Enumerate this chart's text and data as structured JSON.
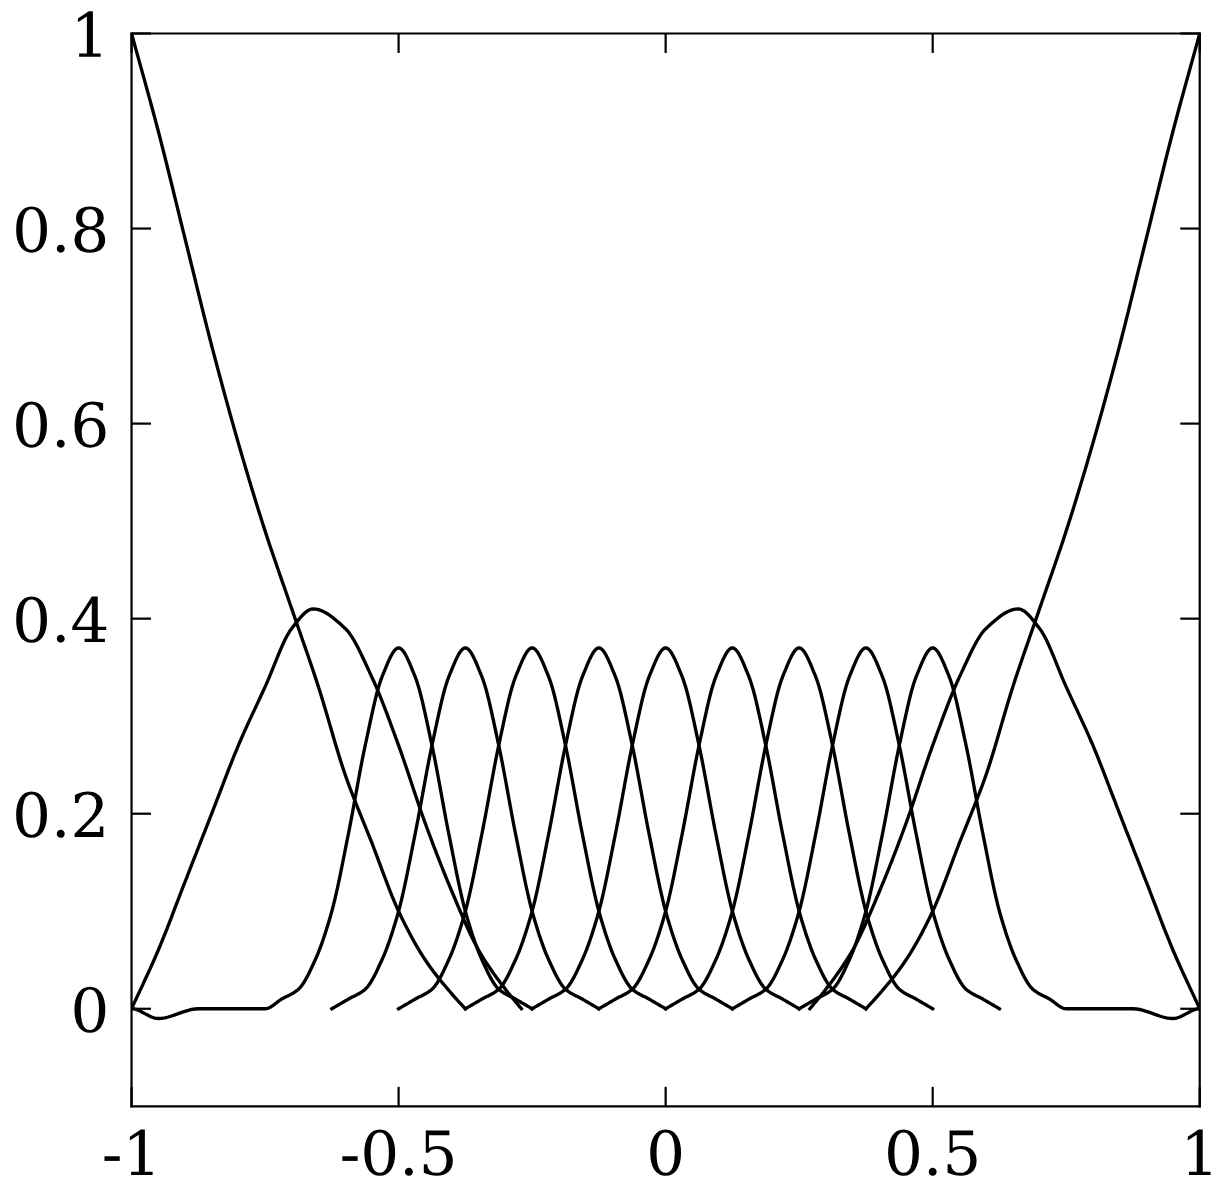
{
  "chart_data": {
    "type": "line",
    "xlim": [
      -1,
      1
    ],
    "ylim": [
      -0.1,
      1
    ],
    "xticks": [
      {
        "value": -1,
        "label": "-1"
      },
      {
        "value": -0.5,
        "label": "-0.5"
      },
      0,
      0.5,
      1
    ],
    "yticks": [
      0,
      0.2,
      0.4,
      0.6,
      0.8,
      1
    ],
    "grid": false,
    "legend": false,
    "marker": "none",
    "line_style": "solid",
    "series": [
      {
        "color": "#000000",
        "x": [
          -1,
          -0.95,
          -0.9,
          -0.85,
          -0.8,
          -0.75,
          -0.7,
          -0.65,
          -0.6,
          -0.55,
          -0.5,
          -0.45,
          -0.4,
          -0.375
        ],
        "values": [
          1,
          0.9,
          0.79,
          0.68,
          0.58,
          0.49,
          0.41,
          0.33,
          0.24,
          0.17,
          0.1,
          0.05,
          0.015,
          0
        ]
      },
      {
        "color": "#000000",
        "x": [
          -1,
          -0.95,
          -0.9,
          -0.85,
          -0.8,
          -0.75,
          -0.7,
          -0.66,
          -0.6,
          -0.55,
          -0.5,
          -0.45,
          -0.4,
          -0.35,
          -0.3,
          -0.27
        ],
        "values": [
          0,
          0.06,
          0.13,
          0.2,
          0.27,
          0.33,
          0.39,
          0.41,
          0.39,
          0.34,
          0.27,
          0.19,
          0.12,
          0.06,
          0.02,
          0
        ]
      },
      {
        "color": "#000000",
        "x": [
          -1,
          -0.95,
          -0.875,
          -0.75,
          -0.71875,
          -0.6875,
          -0.65625,
          -0.625,
          -0.59375,
          -0.5625,
          -0.53125,
          -0.5,
          -0.46875,
          -0.4375,
          -0.40625,
          -0.375,
          -0.34375,
          -0.3125,
          -0.28125,
          -0.25
        ],
        "values": [
          0,
          -0.01,
          0,
          0,
          0.01,
          0.02,
          0.05,
          0.1,
          0.18,
          0.27,
          0.34,
          0.37,
          0.34,
          0.27,
          0.18,
          0.1,
          0.05,
          0.02,
          0.01,
          0
        ]
      },
      {
        "color": "#000000",
        "x": [
          -0.625,
          -0.59375,
          -0.5625,
          -0.53125,
          -0.5,
          -0.46875,
          -0.4375,
          -0.40625,
          -0.375,
          -0.34375,
          -0.3125,
          -0.28125,
          -0.25,
          -0.21875,
          -0.1875,
          -0.15625,
          -0.125
        ],
        "values": [
          0,
          0.01,
          0.02,
          0.05,
          0.1,
          0.18,
          0.27,
          0.34,
          0.37,
          0.34,
          0.27,
          0.18,
          0.1,
          0.05,
          0.02,
          0.01,
          0
        ]
      },
      {
        "color": "#000000",
        "x": [
          -0.5,
          -0.46875,
          -0.4375,
          -0.40625,
          -0.375,
          -0.34375,
          -0.3125,
          -0.28125,
          -0.25,
          -0.21875,
          -0.1875,
          -0.15625,
          -0.125,
          -0.09375,
          -0.0625,
          -0.03125,
          0
        ],
        "values": [
          0,
          0.01,
          0.02,
          0.05,
          0.1,
          0.18,
          0.27,
          0.34,
          0.37,
          0.34,
          0.27,
          0.18,
          0.1,
          0.05,
          0.02,
          0.01,
          0
        ]
      },
      {
        "color": "#000000",
        "x": [
          -0.375,
          -0.34375,
          -0.3125,
          -0.28125,
          -0.25,
          -0.21875,
          -0.1875,
          -0.15625,
          -0.125,
          -0.09375,
          -0.0625,
          -0.03125,
          0,
          0.03125,
          0.0625,
          0.09375,
          0.125
        ],
        "values": [
          0,
          0.01,
          0.02,
          0.05,
          0.1,
          0.18,
          0.27,
          0.34,
          0.37,
          0.34,
          0.27,
          0.18,
          0.1,
          0.05,
          0.02,
          0.01,
          0
        ]
      },
      {
        "color": "#000000",
        "x": [
          -0.25,
          -0.21875,
          -0.1875,
          -0.15625,
          -0.125,
          -0.09375,
          -0.0625,
          -0.03125,
          0,
          0.03125,
          0.0625,
          0.09375,
          0.125,
          0.15625,
          0.1875,
          0.21875,
          0.25
        ],
        "values": [
          0,
          0.01,
          0.02,
          0.05,
          0.1,
          0.18,
          0.27,
          0.34,
          0.37,
          0.34,
          0.27,
          0.18,
          0.1,
          0.05,
          0.02,
          0.01,
          0
        ]
      },
      {
        "color": "#000000",
        "x": [
          -0.125,
          -0.09375,
          -0.0625,
          -0.03125,
          0,
          0.03125,
          0.0625,
          0.09375,
          0.125,
          0.15625,
          0.1875,
          0.21875,
          0.25,
          0.28125,
          0.3125,
          0.34375,
          0.375
        ],
        "values": [
          0,
          0.01,
          0.02,
          0.05,
          0.1,
          0.18,
          0.27,
          0.34,
          0.37,
          0.34,
          0.27,
          0.18,
          0.1,
          0.05,
          0.02,
          0.01,
          0
        ]
      },
      {
        "color": "#000000",
        "x": [
          0,
          0.03125,
          0.0625,
          0.09375,
          0.125,
          0.15625,
          0.1875,
          0.21875,
          0.25,
          0.28125,
          0.3125,
          0.34375,
          0.375,
          0.40625,
          0.4375,
          0.46875,
          0.5
        ],
        "values": [
          0,
          0.01,
          0.02,
          0.05,
          0.1,
          0.18,
          0.27,
          0.34,
          0.37,
          0.34,
          0.27,
          0.18,
          0.1,
          0.05,
          0.02,
          0.01,
          0
        ]
      },
      {
        "color": "#000000",
        "x": [
          0.125,
          0.15625,
          0.1875,
          0.21875,
          0.25,
          0.28125,
          0.3125,
          0.34375,
          0.375,
          0.40625,
          0.4375,
          0.46875,
          0.5,
          0.53125,
          0.5625,
          0.59375,
          0.625
        ],
        "values": [
          0,
          0.01,
          0.02,
          0.05,
          0.1,
          0.18,
          0.27,
          0.34,
          0.37,
          0.34,
          0.27,
          0.18,
          0.1,
          0.05,
          0.02,
          0.01,
          0
        ]
      },
      {
        "color": "#000000",
        "x": [
          0.25,
          0.28125,
          0.3125,
          0.34375,
          0.375,
          0.40625,
          0.4375,
          0.46875,
          0.5,
          0.53125,
          0.5625,
          0.59375,
          0.625,
          0.65625,
          0.6875,
          0.71875,
          0.75,
          0.875,
          0.95,
          1
        ],
        "values": [
          0,
          0.01,
          0.02,
          0.05,
          0.1,
          0.18,
          0.27,
          0.34,
          0.37,
          0.34,
          0.27,
          0.18,
          0.1,
          0.05,
          0.02,
          0.01,
          0,
          0,
          -0.01,
          0
        ]
      },
      {
        "color": "#000000",
        "x": [
          0.27,
          0.3,
          0.35,
          0.4,
          0.45,
          0.5,
          0.55,
          0.6,
          0.66,
          0.7,
          0.75,
          0.8,
          0.85,
          0.9,
          0.95,
          1
        ],
        "values": [
          0,
          0.02,
          0.06,
          0.12,
          0.19,
          0.27,
          0.34,
          0.39,
          0.41,
          0.39,
          0.33,
          0.27,
          0.2,
          0.13,
          0.06,
          0
        ]
      },
      {
        "color": "#000000",
        "x": [
          0.375,
          0.4,
          0.45,
          0.5,
          0.55,
          0.6,
          0.65,
          0.7,
          0.75,
          0.8,
          0.85,
          0.9,
          0.95,
          1
        ],
        "values": [
          0,
          0.015,
          0.05,
          0.1,
          0.17,
          0.24,
          0.33,
          0.41,
          0.49,
          0.58,
          0.68,
          0.79,
          0.9,
          1
        ]
      }
    ]
  }
}
